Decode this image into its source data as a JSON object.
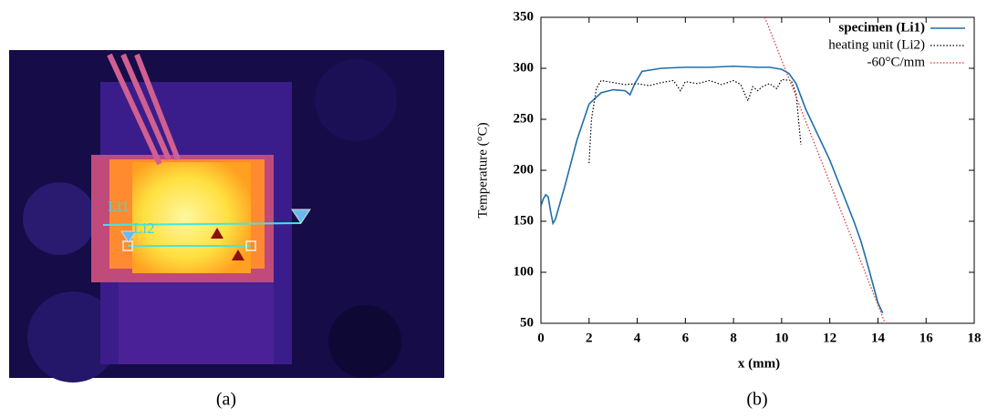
{
  "image_panel": {
    "labels": [
      "Li1",
      "Li2"
    ],
    "caption": "(a)"
  },
  "chart_data": {
    "type": "line",
    "caption": "(b)",
    "x_label": "x (mm)",
    "y_label": "Temperature (°C)",
    "xlim": [
      0,
      18
    ],
    "ylim": [
      50,
      350
    ],
    "xticks": [
      0,
      2,
      4,
      6,
      8,
      10,
      12,
      14,
      16,
      18
    ],
    "yticks": [
      50,
      100,
      150,
      200,
      250,
      300,
      350
    ],
    "legend": "upper right",
    "series": [
      {
        "name": "specimen (Li1)",
        "color": "#1f6fa8",
        "dash": "solid",
        "x": [
          0,
          0.1,
          0.2,
          0.3,
          0.4,
          0.5,
          0.6,
          1.0,
          1.5,
          2.0,
          2.5,
          3.0,
          3.5,
          3.7,
          3.9,
          4.2,
          5,
          6,
          7,
          8,
          9,
          9.5,
          10,
          10.3,
          10.6,
          11,
          12,
          13,
          13.3,
          13.6,
          14,
          14.2
        ],
        "values": [
          165,
          172,
          176,
          174,
          160,
          148,
          152,
          185,
          230,
          265,
          276,
          279,
          278,
          274,
          285,
          297,
          300,
          301,
          301,
          302,
          301,
          301,
          299,
          295,
          285,
          260,
          210,
          150,
          130,
          105,
          70,
          60
        ]
      },
      {
        "name": "heating unit (Li2)",
        "color": "#000000",
        "dash": "dotted",
        "x": [
          2.0,
          2.1,
          2.3,
          2.5,
          3,
          3.5,
          4,
          4.5,
          5,
          5.5,
          5.8,
          6,
          6.5,
          7,
          7.5,
          8,
          8.3,
          8.6,
          8.8,
          9,
          9.2,
          9.5,
          9.8,
          10,
          10.4,
          10.6,
          10.7,
          10.8
        ],
        "values": [
          207,
          250,
          280,
          288,
          286,
          284,
          285,
          283,
          286,
          288,
          278,
          287,
          285,
          288,
          284,
          288,
          284,
          268,
          282,
          278,
          282,
          285,
          280,
          289,
          288,
          275,
          250,
          225
        ]
      },
      {
        "name": "-60°C/mm",
        "color": "#e03030",
        "dash": "dotted",
        "x": [
          9.3,
          14.3
        ],
        "values": [
          350,
          50
        ]
      }
    ]
  }
}
